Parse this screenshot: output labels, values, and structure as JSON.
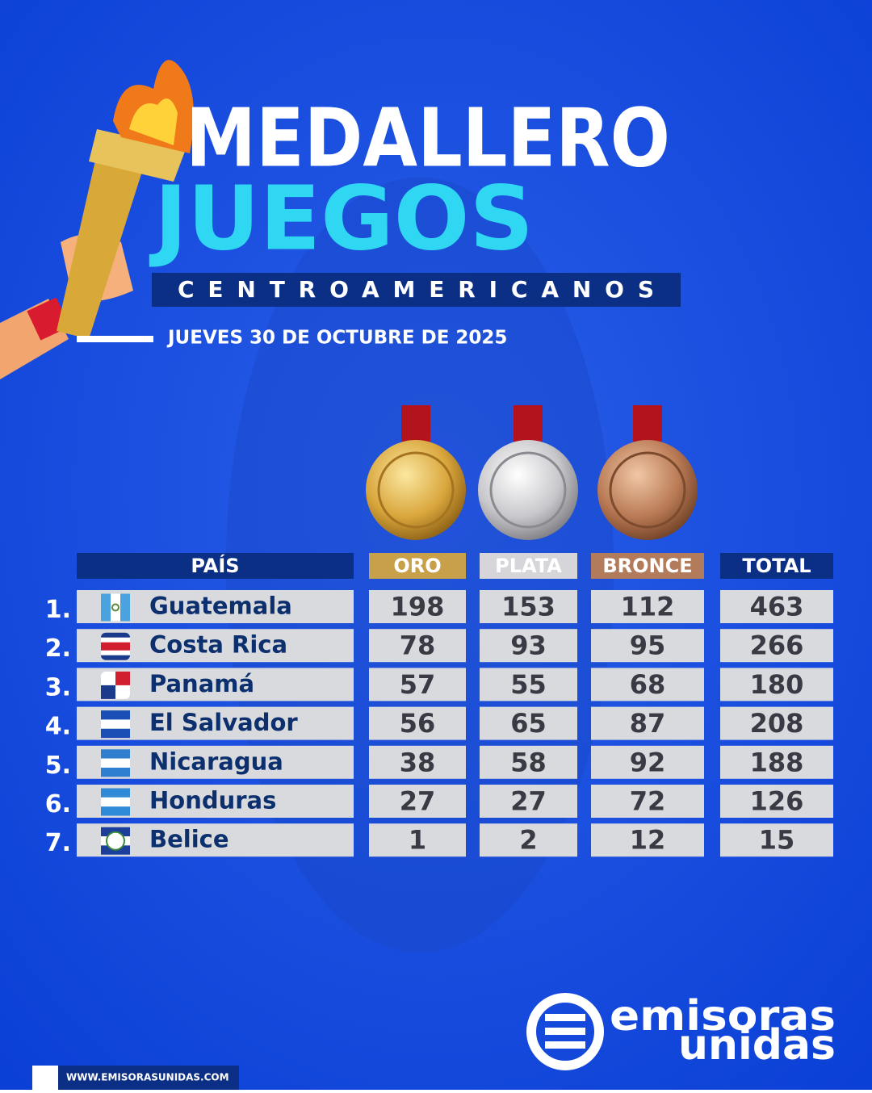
{
  "header": {
    "title": "MEDALLERO",
    "subtitle": "JUEGOS",
    "banner": "CENTROAMERICANOS",
    "date": "JUEVES 30 DE OCTUBRE DE 2025"
  },
  "table": {
    "columns": [
      "PAÍS",
      "ORO",
      "PLATA",
      "BRONCE",
      "TOTAL"
    ],
    "rows": [
      [
        "1.",
        "Guatemala",
        198,
        153,
        112,
        463
      ],
      [
        "2.",
        "Costa Rica",
        78,
        93,
        95,
        266
      ],
      [
        "3.",
        "Panamá",
        57,
        55,
        68,
        180
      ],
      [
        "4.",
        "El Salvador",
        56,
        65,
        87,
        208
      ],
      [
        "5.",
        "Nicaragua",
        38,
        58,
        92,
        188
      ],
      [
        "6.",
        "Honduras",
        27,
        27,
        72,
        126
      ],
      [
        "7.",
        "Belice",
        1,
        2,
        12,
        15
      ]
    ]
  },
  "footer": {
    "logo_top": "emisoras",
    "logo_bottom": "unidas",
    "website": "WWW.EMISORASUNIDAS.COM"
  }
}
